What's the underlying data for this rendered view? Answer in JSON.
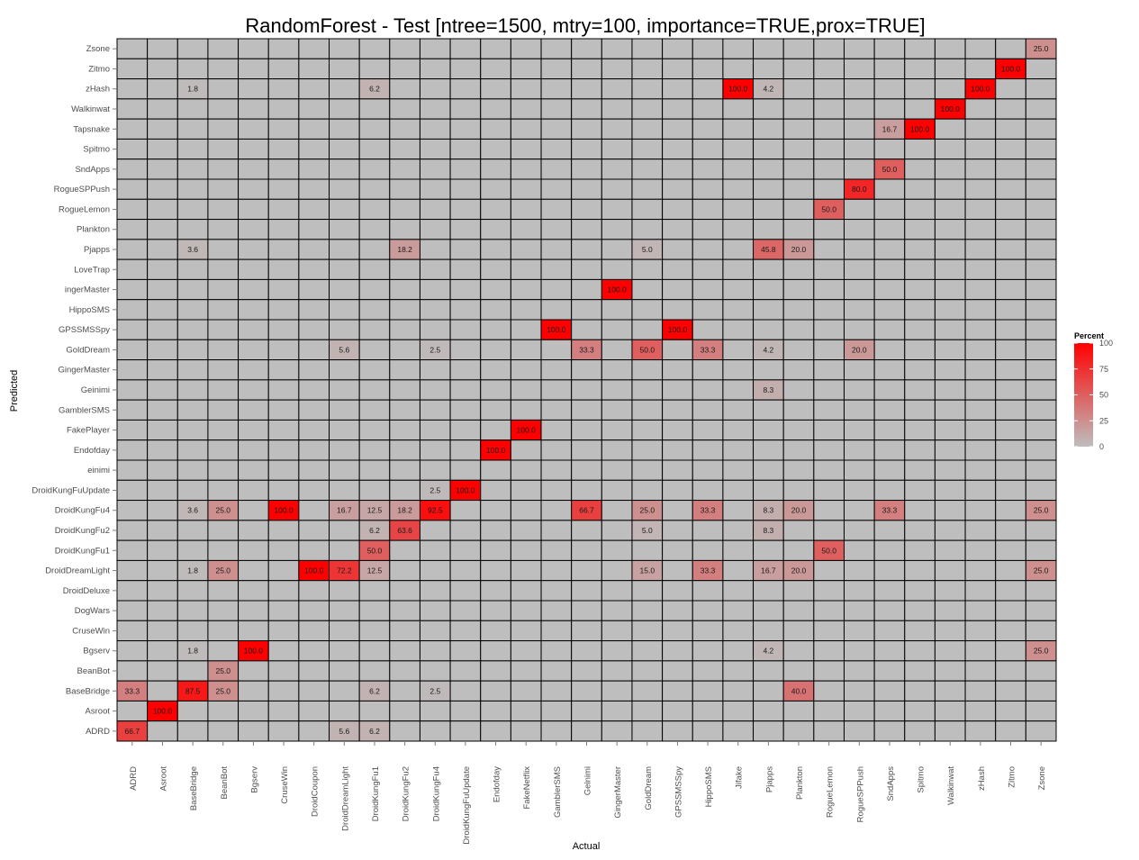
{
  "chart_data": {
    "type": "heatmap",
    "title": "RandomForest - Test [ntree=1500, mtry=100, importance=TRUE,prox=TRUE]",
    "xlabel": "Actual",
    "ylabel": "Predicted",
    "x_categories": [
      "ADRD",
      "Asroot",
      "BaseBridge",
      "BeanBot",
      "Bgserv",
      "CruseWin",
      "DroidCoupon",
      "DroidDreamLight",
      "DroidKungFu1",
      "DroidKungFu2",
      "DroidKungFu4",
      "DroidKungFuUpdate",
      "Endofday",
      "FakeNetflix",
      "GamblerSMS",
      "Geinimi",
      "GingerMaster",
      "GoldDream",
      "GPSSMSSpy",
      "HippoSMS",
      "Jifake",
      "Pjapps",
      "Plankton",
      "RogueLemon",
      "RogueSPPush",
      "SndApps",
      "Spitmo",
      "Walkinwat",
      "zHash",
      "Zitmo",
      "Zsone"
    ],
    "y_categories_top_to_bottom": [
      "Zsone",
      "Zitmo",
      "zHash",
      "Walkinwat",
      "Tapsnake",
      "Spitmo",
      "SndApps",
      "RogueSPPush",
      "RogueLemon",
      "Plankton",
      "Pjapps",
      "LoveTrap",
      "ingerMaster",
      "HippoSMS",
      "GPSSMSSpy",
      "GoldDream",
      "GingerMaster",
      "Geinimi",
      "GamblerSMS",
      "FakePlayer",
      "Endofday",
      "einimi",
      "DroidKungFuUpdate",
      "DroidKungFu4",
      "DroidKungFu2",
      "DroidKungFu1",
      "DroidDreamLight",
      "DroidDeluxe",
      "DogWars",
      "CruseWin",
      "Bgserv",
      "BeanBot",
      "BaseBridge",
      "Asroot",
      "ADRD"
    ],
    "cells": [
      {
        "y": "Zsone",
        "x": "Zsone",
        "value": 25.0,
        "label": "25.0"
      },
      {
        "y": "Zitmo",
        "x": "Zitmo",
        "value": 100.0,
        "label": "100.0"
      },
      {
        "y": "zHash",
        "x": "BaseBridge",
        "value": 1.8,
        "label": "1.8"
      },
      {
        "y": "zHash",
        "x": "DroidKungFu1",
        "value": 6.2,
        "label": "6.2"
      },
      {
        "y": "zHash",
        "x": "Jifake",
        "value": 100.0,
        "label": "100.0"
      },
      {
        "y": "zHash",
        "x": "Pjapps",
        "value": 4.2,
        "label": "4.2"
      },
      {
        "y": "zHash",
        "x": "zHash",
        "value": 100.0,
        "label": "100.0"
      },
      {
        "y": "Walkinwat",
        "x": "Walkinwat",
        "value": 100.0,
        "label": "100.0"
      },
      {
        "y": "Tapsnake",
        "x": "SndApps",
        "value": 16.7,
        "label": "16.7"
      },
      {
        "y": "Tapsnake",
        "x": "Spitmo",
        "value": 100.0,
        "label": "100.0"
      },
      {
        "y": "SndApps",
        "x": "SndApps",
        "value": 50.0,
        "label": "50.0"
      },
      {
        "y": "RogueSPPush",
        "x": "RogueSPPush",
        "value": 80.0,
        "label": "80.0"
      },
      {
        "y": "RogueLemon",
        "x": "RogueLemon",
        "value": 50.0,
        "label": "50.0"
      },
      {
        "y": "Pjapps",
        "x": "BaseBridge",
        "value": 3.6,
        "label": "3.6"
      },
      {
        "y": "Pjapps",
        "x": "DroidKungFu2",
        "value": 18.2,
        "label": "18.2"
      },
      {
        "y": "Pjapps",
        "x": "GoldDream",
        "value": 5.0,
        "label": "5.0"
      },
      {
        "y": "Pjapps",
        "x": "Pjapps",
        "value": 45.8,
        "label": "45.8"
      },
      {
        "y": "Pjapps",
        "x": "Plankton",
        "value": 20.0,
        "label": "20.0"
      },
      {
        "y": "ingerMaster",
        "x": "GingerMaster",
        "value": 100.0,
        "label": "100.0"
      },
      {
        "y": "GPSSMSSpy",
        "x": "GamblerSMS",
        "value": 100.0,
        "label": "100.0"
      },
      {
        "y": "GPSSMSSpy",
        "x": "GPSSMSSpy",
        "value": 100.0,
        "label": "100.0"
      },
      {
        "y": "GoldDream",
        "x": "DroidDreamLight",
        "value": 5.6,
        "label": "5.6"
      },
      {
        "y": "GoldDream",
        "x": "DroidKungFu4",
        "value": 2.5,
        "label": "2.5"
      },
      {
        "y": "GoldDream",
        "x": "Geinimi",
        "value": 33.3,
        "label": "33.3"
      },
      {
        "y": "GoldDream",
        "x": "GoldDream",
        "value": 50.0,
        "label": "50.0"
      },
      {
        "y": "GoldDream",
        "x": "HippoSMS",
        "value": 33.3,
        "label": "33.3"
      },
      {
        "y": "GoldDream",
        "x": "Pjapps",
        "value": 4.2,
        "label": "4.2"
      },
      {
        "y": "GoldDream",
        "x": "RogueSPPush",
        "value": 20.0,
        "label": "20.0"
      },
      {
        "y": "Geinimi",
        "x": "Pjapps",
        "value": 8.3,
        "label": "8.3"
      },
      {
        "y": "FakePlayer",
        "x": "FakeNetflix",
        "value": 100.0,
        "label": "100.0"
      },
      {
        "y": "Endofday",
        "x": "Endofday",
        "value": 100.0,
        "label": "100.0"
      },
      {
        "y": "DroidKungFuUpdate",
        "x": "DroidKungFu4",
        "value": 2.5,
        "label": "2.5"
      },
      {
        "y": "DroidKungFuUpdate",
        "x": "DroidKungFuUpdate",
        "value": 100.0,
        "label": "100.0"
      },
      {
        "y": "DroidKungFu4",
        "x": "BaseBridge",
        "value": 3.6,
        "label": "3.6"
      },
      {
        "y": "DroidKungFu4",
        "x": "BeanBot",
        "value": 25.0,
        "label": "25.0"
      },
      {
        "y": "DroidKungFu4",
        "x": "CruseWin",
        "value": 100.0,
        "label": "100.0"
      },
      {
        "y": "DroidKungFu4",
        "x": "DroidDreamLight",
        "value": 16.7,
        "label": "16.7"
      },
      {
        "y": "DroidKungFu4",
        "x": "DroidKungFu1",
        "value": 12.5,
        "label": "12.5"
      },
      {
        "y": "DroidKungFu4",
        "x": "DroidKungFu2",
        "value": 18.2,
        "label": "18.2"
      },
      {
        "y": "DroidKungFu4",
        "x": "DroidKungFu4",
        "value": 92.5,
        "label": "92.5"
      },
      {
        "y": "DroidKungFu4",
        "x": "Geinimi",
        "value": 66.7,
        "label": "66.7"
      },
      {
        "y": "DroidKungFu4",
        "x": "GoldDream",
        "value": 25.0,
        "label": "25.0"
      },
      {
        "y": "DroidKungFu4",
        "x": "HippoSMS",
        "value": 33.3,
        "label": "33.3"
      },
      {
        "y": "DroidKungFu4",
        "x": "Pjapps",
        "value": 8.3,
        "label": "8.3"
      },
      {
        "y": "DroidKungFu4",
        "x": "Plankton",
        "value": 20.0,
        "label": "20.0"
      },
      {
        "y": "DroidKungFu4",
        "x": "SndApps",
        "value": 33.3,
        "label": "33.3"
      },
      {
        "y": "DroidKungFu4",
        "x": "Zsone",
        "value": 25.0,
        "label": "25.0"
      },
      {
        "y": "DroidKungFu2",
        "x": "DroidKungFu1",
        "value": 6.2,
        "label": "6.2"
      },
      {
        "y": "DroidKungFu2",
        "x": "DroidKungFu2",
        "value": 63.6,
        "label": "63.6"
      },
      {
        "y": "DroidKungFu2",
        "x": "GoldDream",
        "value": 5.0,
        "label": "5.0"
      },
      {
        "y": "DroidKungFu2",
        "x": "Pjapps",
        "value": 8.3,
        "label": "8.3"
      },
      {
        "y": "DroidKungFu1",
        "x": "DroidKungFu1",
        "value": 50.0,
        "label": "50.0"
      },
      {
        "y": "DroidKungFu1",
        "x": "RogueLemon",
        "value": 50.0,
        "label": "50.0"
      },
      {
        "y": "DroidDreamLight",
        "x": "BaseBridge",
        "value": 1.8,
        "label": "1.8"
      },
      {
        "y": "DroidDreamLight",
        "x": "BeanBot",
        "value": 25.0,
        "label": "25.0"
      },
      {
        "y": "DroidDreamLight",
        "x": "DroidCoupon",
        "value": 100.0,
        "label": "100.0"
      },
      {
        "y": "DroidDreamLight",
        "x": "DroidDreamLight",
        "value": 72.2,
        "label": "72.2"
      },
      {
        "y": "DroidDreamLight",
        "x": "DroidKungFu1",
        "value": 12.5,
        "label": "12.5"
      },
      {
        "y": "DroidDreamLight",
        "x": "GoldDream",
        "value": 15.0,
        "label": "15.0"
      },
      {
        "y": "DroidDreamLight",
        "x": "HippoSMS",
        "value": 33.3,
        "label": "33.3"
      },
      {
        "y": "DroidDreamLight",
        "x": "Pjapps",
        "value": 16.7,
        "label": "16.7"
      },
      {
        "y": "DroidDreamLight",
        "x": "Plankton",
        "value": 20.0,
        "label": "20.0"
      },
      {
        "y": "DroidDreamLight",
        "x": "Zsone",
        "value": 25.0,
        "label": "25.0"
      },
      {
        "y": "Bgserv",
        "x": "BaseBridge",
        "value": 1.8,
        "label": "1.8"
      },
      {
        "y": "Bgserv",
        "x": "Bgserv",
        "value": 100.0,
        "label": "100.0"
      },
      {
        "y": "Bgserv",
        "x": "Pjapps",
        "value": 4.2,
        "label": "4.2"
      },
      {
        "y": "Bgserv",
        "x": "Zsone",
        "value": 25.0,
        "label": "25.0"
      },
      {
        "y": "BeanBot",
        "x": "BeanBot",
        "value": 25.0,
        "label": "25.0"
      },
      {
        "y": "BaseBridge",
        "x": "ADRD",
        "value": 33.3,
        "label": "33.3"
      },
      {
        "y": "BaseBridge",
        "x": "BaseBridge",
        "value": 87.5,
        "label": "87.5"
      },
      {
        "y": "BaseBridge",
        "x": "BeanBot",
        "value": 25.0,
        "label": "25.0"
      },
      {
        "y": "BaseBridge",
        "x": "DroidKungFu1",
        "value": 6.2,
        "label": "6.2"
      },
      {
        "y": "BaseBridge",
        "x": "DroidKungFu4",
        "value": 2.5,
        "label": "2.5"
      },
      {
        "y": "BaseBridge",
        "x": "Plankton",
        "value": 40.0,
        "label": "40.0"
      },
      {
        "y": "Asroot",
        "x": "Asroot",
        "value": 100.0,
        "label": "100.0"
      },
      {
        "y": "ADRD",
        "x": "ADRD",
        "value": 66.7,
        "label": "66.7"
      },
      {
        "y": "ADRD",
        "x": "DroidDreamLight",
        "value": 5.6,
        "label": "5.6"
      },
      {
        "y": "ADRD",
        "x": "DroidKungFu1",
        "value": 6.2,
        "label": "6.2"
      }
    ],
    "color_scale": {
      "low": "#bebebe",
      "high": "#ff0000",
      "empty": "#bebebe",
      "domain": [
        0,
        100
      ]
    },
    "legend": {
      "title": "Percent",
      "ticks": [
        0,
        25,
        50,
        75,
        100
      ],
      "position": "right"
    },
    "grid": true
  }
}
